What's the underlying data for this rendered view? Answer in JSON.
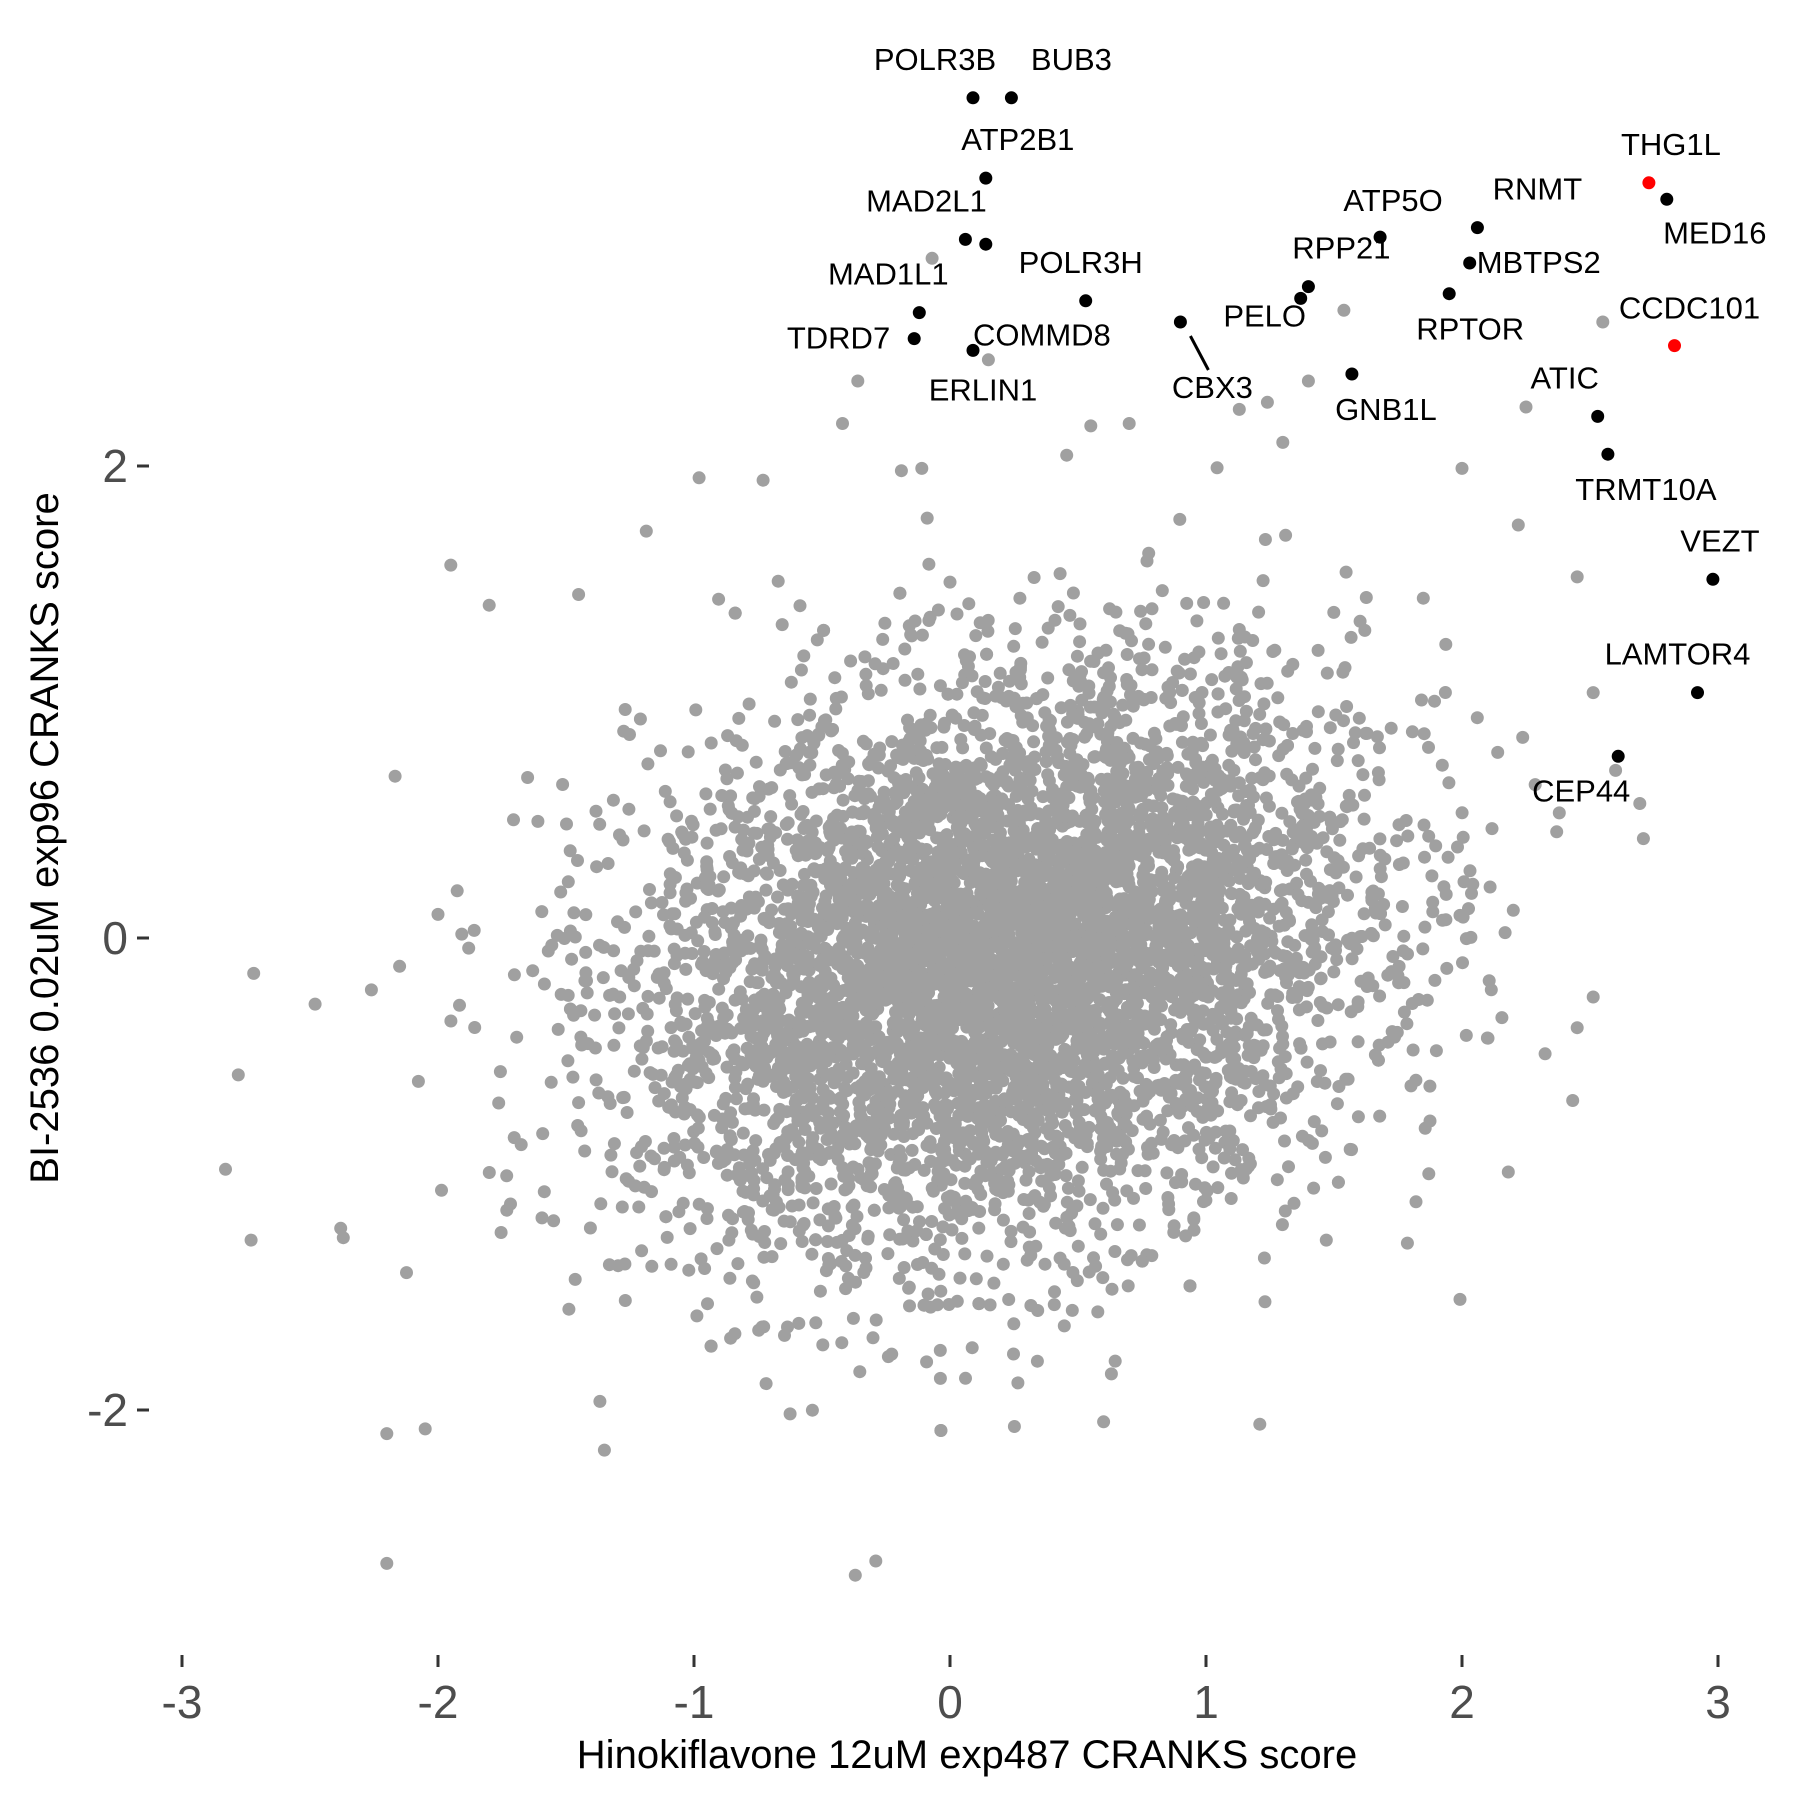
{
  "chart_data": {
    "type": "scatter",
    "xlabel": "Hinokiflavone 12uM exp487 CRANKS score",
    "ylabel": "BI-2536 0.02uM exp96 CRANKS score",
    "xlim": [
      -3.1,
      3.05
    ],
    "ylim": [
      -2.95,
      3.6
    ],
    "x_ticks": [
      -3,
      -2,
      -1,
      0,
      1,
      2,
      3
    ],
    "y_ticks": [
      -2,
      0,
      2
    ],
    "x_tick_labels": [
      "-3",
      "-2",
      "-1",
      "0",
      "1",
      "2",
      "3"
    ],
    "y_tick_labels": [
      "-2",
      "0",
      "2"
    ],
    "grid": false,
    "legend": "none",
    "colors": {
      "background_points": "#a0a0a0",
      "highlight": "#000000",
      "highlight_red": "#ff0000",
      "axis_text": "#4d4d4d"
    },
    "background_cloud": {
      "description_count": 6000,
      "center": [
        0.2,
        -0.1
      ],
      "sd": [
        0.7,
        0.6
      ],
      "correlation": 0.22
    },
    "background_outliers": [
      [
        -2.83,
        -0.98
      ],
      [
        -2.78,
        -0.58
      ],
      [
        -2.73,
        -1.28
      ],
      [
        -2.72,
        -0.15
      ],
      [
        -2.48,
        -0.28
      ],
      [
        -2.38,
        -1.23
      ],
      [
        -2.37,
        -1.27
      ],
      [
        -2.2,
        -2.65
      ],
      [
        -2.2,
        -2.1
      ],
      [
        -2.05,
        -2.08
      ],
      [
        -1.95,
        1.58
      ],
      [
        -2.26,
        -0.22
      ],
      [
        -2.15,
        -0.12
      ],
      [
        -1.8,
        1.41
      ],
      [
        -2.0,
        0.1
      ],
      [
        -1.65,
        0.68
      ],
      [
        -0.98,
        1.95
      ],
      [
        -0.73,
        1.94
      ],
      [
        -0.36,
        2.36
      ],
      [
        -0.42,
        2.18
      ],
      [
        -0.11,
        1.99
      ],
      [
        -0.19,
        1.98
      ],
      [
        0.55,
        2.17
      ],
      [
        0.7,
        2.18
      ],
      [
        1.13,
        2.24
      ],
      [
        -0.37,
        -2.7
      ],
      [
        -0.29,
        -2.64
      ],
      [
        0.6,
        -2.05
      ],
      [
        1.21,
        -2.06
      ],
      [
        -1.35,
        -2.17
      ],
      [
        2.55,
        2.61
      ],
      [
        2.45,
        1.53
      ],
      [
        2.6,
        0.71
      ],
      [
        2.38,
        0.53
      ],
      [
        2.37,
        0.45
      ],
      [
        2.45,
        -0.38
      ],
      [
        2.0,
        1.99
      ],
      [
        2.25,
        2.25
      ],
      [
        2.22,
        1.75
      ],
      [
        -0.07,
        2.88
      ],
      [
        0.15,
        2.45
      ],
      [
        1.24,
        2.27
      ],
      [
        1.3,
        2.1
      ],
      [
        1.4,
        2.36
      ]
    ],
    "highlighted_points": [
      {
        "label": "POLR3B",
        "x": 0.09,
        "y": 3.56,
        "color": "#000000"
      },
      {
        "label": "BUB3",
        "x": 0.24,
        "y": 3.56,
        "color": "#000000"
      },
      {
        "label": "ATP2B1",
        "x": 0.14,
        "y": 3.22,
        "color": "#000000"
      },
      {
        "label": "MAD2L1",
        "x": 0.06,
        "y": 2.96,
        "color": "#000000"
      },
      {
        "label": "",
        "x": 0.14,
        "y": 2.94,
        "color": "#000000"
      },
      {
        "label": "POLR3H",
        "x": 0.53,
        "y": 2.7,
        "color": "#000000"
      },
      {
        "label": "MAD1L1",
        "x": -0.12,
        "y": 2.65,
        "color": "#000000"
      },
      {
        "label": "TDRD7",
        "x": -0.14,
        "y": 2.54,
        "color": "#000000"
      },
      {
        "label": "COMMD8",
        "x": 0.09,
        "y": 2.49,
        "color": "#000000"
      },
      {
        "label": "ERLIN1",
        "x": 0.09,
        "y": 2.49,
        "color": "#000000"
      },
      {
        "label": "CBX3",
        "x": 0.9,
        "y": 2.61,
        "color": "#000000"
      },
      {
        "label": "PELO",
        "x": 1.37,
        "y": 2.71,
        "color": "#000000"
      },
      {
        "label": "RPP21",
        "x": 1.4,
        "y": 2.76,
        "color": "#000000"
      },
      {
        "label": "ATP5O",
        "x": 1.68,
        "y": 2.97,
        "color": "#000000"
      },
      {
        "label": "GNB1L",
        "x": 1.57,
        "y": 2.39,
        "color": "#000000"
      },
      {
        "label": "RPTOR",
        "x": 1.95,
        "y": 2.73,
        "color": "#000000"
      },
      {
        "label": "RNMT",
        "x": 2.06,
        "y": 3.01,
        "color": "#000000"
      },
      {
        "label": "MBTPS2",
        "x": 2.03,
        "y": 2.86,
        "color": "#000000"
      },
      {
        "label": "THG1L",
        "x": 2.73,
        "y": 3.2,
        "color": "#ff0000"
      },
      {
        "label": "MED16",
        "x": 2.8,
        "y": 3.13,
        "color": "#000000"
      },
      {
        "label": "CCDC101",
        "x": 2.83,
        "y": 2.51,
        "color": "#ff0000"
      },
      {
        "label": "ATIC",
        "x": 2.53,
        "y": 2.21,
        "color": "#000000"
      },
      {
        "label": "TRMT10A",
        "x": 2.57,
        "y": 2.05,
        "color": "#000000"
      },
      {
        "label": "VEZT",
        "x": 2.98,
        "y": 1.52,
        "color": "#000000"
      },
      {
        "label": "LAMTOR4",
        "x": 2.92,
        "y": 1.04,
        "color": "#000000"
      },
      {
        "label": "CEP44",
        "x": 2.61,
        "y": 0.77,
        "color": "#000000"
      }
    ]
  }
}
